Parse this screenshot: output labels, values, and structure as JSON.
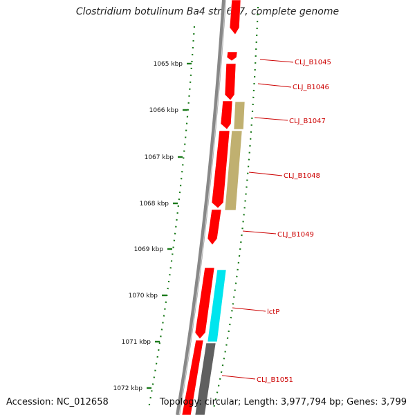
{
  "title": {
    "species": "Clostridium botulinum",
    "strain": " Ba4 str. 657, complete genome"
  },
  "footer": {
    "accession": "Accession: NC_012658",
    "summary": "Topology: circular; Length: 3,977,794 bp; Genes: 3,799"
  },
  "colors": {
    "backbone": "#888888",
    "ticks": "#1a7a1a",
    "gene_label": "#cc0000",
    "red_feature": "#ff0000",
    "khaki_feature": "#c0b070",
    "cyan_feature": "#00e5ee",
    "gray_feature": "#606060"
  },
  "scale": {
    "ticks": [
      {
        "label": "1065 kbp"
      },
      {
        "label": "1066 kbp"
      },
      {
        "label": "1067 kbp"
      },
      {
        "label": "1068 kbp"
      },
      {
        "label": "1069 kbp"
      },
      {
        "label": "1070 kbp"
      },
      {
        "label": "1071 kbp"
      },
      {
        "label": "1072 kbp"
      }
    ]
  },
  "genes": [
    {
      "label": "CLJ_B1045"
    },
    {
      "label": "CLJ_B1046"
    },
    {
      "label": "CLJ_B1047"
    },
    {
      "label": "CLJ_B1048"
    },
    {
      "label": "CLJ_B1049"
    },
    {
      "label": "lctP"
    },
    {
      "label": "CLJ_B1051"
    }
  ]
}
